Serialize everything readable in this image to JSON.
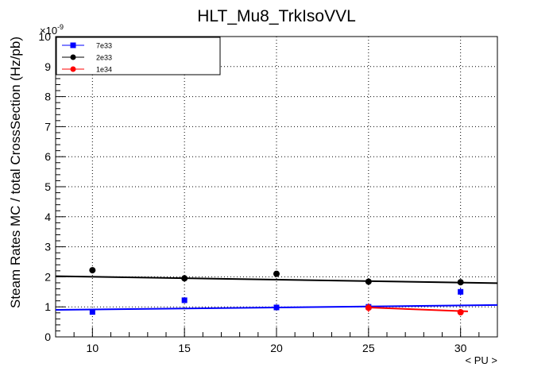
{
  "chart_data": {
    "type": "scatter",
    "title": "HLT_Mu8_TrkIsoVVL",
    "xlabel": "< PU >",
    "ylabel": "Steam Rates MC / total CrossSection (Hz/pb)",
    "y_exponent_label": "×10",
    "y_exponent_power": "-9",
    "xlim": [
      8,
      32
    ],
    "ylim": [
      0,
      10
    ],
    "x_ticks": [
      10,
      15,
      20,
      25,
      30
    ],
    "y_ticks": [
      0,
      1,
      2,
      3,
      4,
      5,
      6,
      7,
      8,
      9,
      10
    ],
    "grid": true,
    "legend_position": "top-left",
    "series": [
      {
        "name": "7e33",
        "color": "#0000ff",
        "marker": "square",
        "x": [
          10,
          15,
          20,
          25,
          30
        ],
        "y": [
          0.83,
          1.22,
          0.98,
          1.0,
          1.5
        ],
        "yerr": [
          0.05,
          0.06,
          0.05,
          0.08,
          0.12
        ],
        "fit": {
          "x": [
            8,
            32
          ],
          "y": [
            0.9,
            1.06
          ]
        }
      },
      {
        "name": "2e33",
        "color": "#000000",
        "marker": "circle",
        "x": [
          10,
          15,
          20,
          25,
          30
        ],
        "y": [
          2.22,
          1.95,
          2.1,
          1.84,
          1.82
        ],
        "yerr": [
          0.04,
          0.04,
          0.05,
          0.05,
          0.06
        ],
        "fit": {
          "x": [
            8,
            32
          ],
          "y": [
            2.02,
            1.79
          ]
        }
      },
      {
        "name": "1e34",
        "color": "#ff0000",
        "marker": "circle",
        "x": [
          25,
          30
        ],
        "y": [
          0.97,
          0.82
        ],
        "yerr": [
          0.15,
          0.1
        ],
        "fit": {
          "x": [
            25,
            30.4
          ],
          "y": [
            0.98,
            0.85
          ]
        }
      }
    ]
  }
}
